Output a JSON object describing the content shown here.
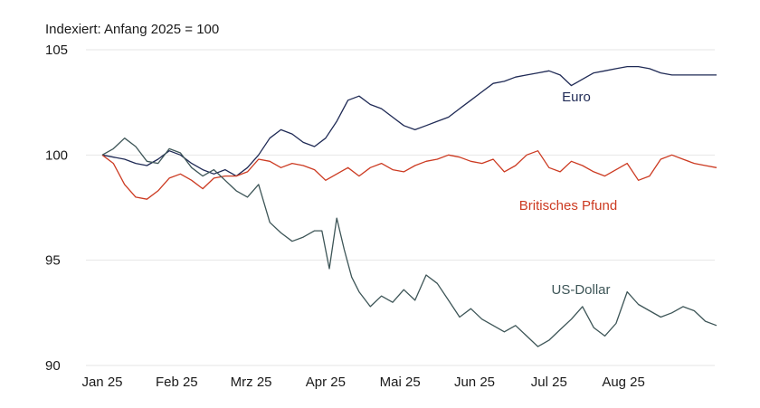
{
  "chart_data": {
    "type": "line",
    "title": "Indexiert: Anfang 2025 = 100",
    "ylim": [
      90,
      105
    ],
    "yticks": [
      90,
      95,
      100,
      105
    ],
    "xlim": [
      0,
      8.25
    ],
    "xticks": [
      {
        "label": "Jan 25",
        "x": 0
      },
      {
        "label": "Feb 25",
        "x": 1
      },
      {
        "label": "Mrz 25",
        "x": 2
      },
      {
        "label": "Apr 25",
        "x": 3
      },
      {
        "label": "Mai 25",
        "x": 4
      },
      {
        "label": "Jun 25",
        "x": 5
      },
      {
        "label": "Jul 25",
        "x": 6
      },
      {
        "label": "Aug 25",
        "x": 7
      }
    ],
    "grid": true,
    "legend": "inline labels",
    "series": [
      {
        "name": "Euro",
        "color": "#1f2a55",
        "x": [
          0,
          0.15,
          0.3,
          0.45,
          0.6,
          0.75,
          0.9,
          1.05,
          1.2,
          1.35,
          1.5,
          1.65,
          1.8,
          1.95,
          2.1,
          2.25,
          2.4,
          2.55,
          2.7,
          2.85,
          3.0,
          3.15,
          3.3,
          3.45,
          3.6,
          3.75,
          3.9,
          4.05,
          4.2,
          4.35,
          4.5,
          4.65,
          4.8,
          4.95,
          5.1,
          5.25,
          5.4,
          5.55,
          5.7,
          5.85,
          6.0,
          6.15,
          6.3,
          6.45,
          6.6,
          6.75,
          6.9,
          7.05,
          7.2,
          7.35,
          7.5,
          7.65,
          7.8,
          7.95,
          8.1,
          8.25
        ],
        "values": [
          100,
          99.9,
          99.8,
          99.6,
          99.5,
          99.8,
          100.2,
          100.0,
          99.6,
          99.3,
          99.1,
          99.3,
          99.0,
          99.4,
          100.0,
          100.8,
          101.2,
          101.0,
          100.6,
          100.4,
          100.8,
          101.6,
          102.6,
          102.8,
          102.4,
          102.2,
          101.8,
          101.4,
          101.2,
          101.4,
          101.6,
          101.8,
          102.2,
          102.6,
          103.0,
          103.4,
          103.5,
          103.7,
          103.8,
          103.9,
          104.0,
          103.8,
          103.3,
          103.6,
          103.9,
          104.0,
          104.1,
          104.2,
          104.2,
          104.1,
          103.9,
          103.8,
          103.8,
          103.8,
          103.8,
          103.8
        ],
        "label": "Euro"
      },
      {
        "name": "Britisches Pfund",
        "color": "#cc3a21",
        "x": [
          0,
          0.15,
          0.3,
          0.45,
          0.6,
          0.75,
          0.9,
          1.05,
          1.2,
          1.35,
          1.5,
          1.65,
          1.8,
          1.95,
          2.1,
          2.25,
          2.4,
          2.55,
          2.7,
          2.85,
          3.0,
          3.15,
          3.3,
          3.45,
          3.6,
          3.75,
          3.9,
          4.05,
          4.2,
          4.35,
          4.5,
          4.65,
          4.8,
          4.95,
          5.1,
          5.25,
          5.4,
          5.55,
          5.7,
          5.85,
          6.0,
          6.15,
          6.3,
          6.45,
          6.6,
          6.75,
          6.9,
          7.05,
          7.2,
          7.35,
          7.5,
          7.65,
          7.8,
          7.95,
          8.1,
          8.25
        ],
        "values": [
          100,
          99.6,
          98.6,
          98.0,
          97.9,
          98.3,
          98.9,
          99.1,
          98.8,
          98.4,
          98.9,
          99.0,
          99.0,
          99.2,
          99.8,
          99.7,
          99.4,
          99.6,
          99.5,
          99.3,
          98.8,
          99.1,
          99.4,
          99.0,
          99.4,
          99.6,
          99.3,
          99.2,
          99.5,
          99.7,
          99.8,
          100.0,
          99.9,
          99.7,
          99.6,
          99.8,
          99.2,
          99.5,
          100.0,
          100.2,
          99.4,
          99.2,
          99.7,
          99.5,
          99.2,
          99.0,
          99.3,
          99.6,
          98.8,
          99.0,
          99.8,
          100.0,
          99.8,
          99.6,
          99.5,
          99.4
        ],
        "label": "Britisches Pfund"
      },
      {
        "name": "US-Dollar",
        "color": "#3d5557",
        "x": [
          0,
          0.15,
          0.3,
          0.45,
          0.6,
          0.75,
          0.9,
          1.05,
          1.2,
          1.35,
          1.5,
          1.65,
          1.8,
          1.95,
          2.1,
          2.25,
          2.4,
          2.55,
          2.7,
          2.85,
          2.95,
          3.05,
          3.15,
          3.25,
          3.35,
          3.45,
          3.6,
          3.75,
          3.9,
          4.05,
          4.2,
          4.35,
          4.5,
          4.65,
          4.8,
          4.95,
          5.1,
          5.25,
          5.4,
          5.55,
          5.7,
          5.85,
          6.0,
          6.15,
          6.3,
          6.45,
          6.6,
          6.75,
          6.9,
          7.05,
          7.2,
          7.35,
          7.5,
          7.65,
          7.8,
          7.95,
          8.1,
          8.25
        ],
        "values": [
          100,
          100.3,
          100.8,
          100.4,
          99.7,
          99.6,
          100.3,
          100.1,
          99.4,
          99.0,
          99.3,
          98.8,
          98.3,
          98.0,
          98.6,
          96.8,
          96.3,
          95.9,
          96.1,
          96.4,
          96.4,
          94.6,
          97.0,
          95.5,
          94.2,
          93.5,
          92.8,
          93.3,
          93.0,
          93.6,
          93.1,
          94.3,
          93.9,
          93.1,
          92.3,
          92.7,
          92.2,
          91.9,
          91.6,
          91.9,
          91.4,
          90.9,
          91.2,
          91.7,
          92.2,
          92.8,
          91.8,
          91.4,
          92.0,
          93.5,
          92.9,
          92.6,
          92.3,
          92.5,
          92.8,
          92.6,
          92.1,
          91.9
        ],
        "label": "US-Dollar"
      }
    ]
  }
}
